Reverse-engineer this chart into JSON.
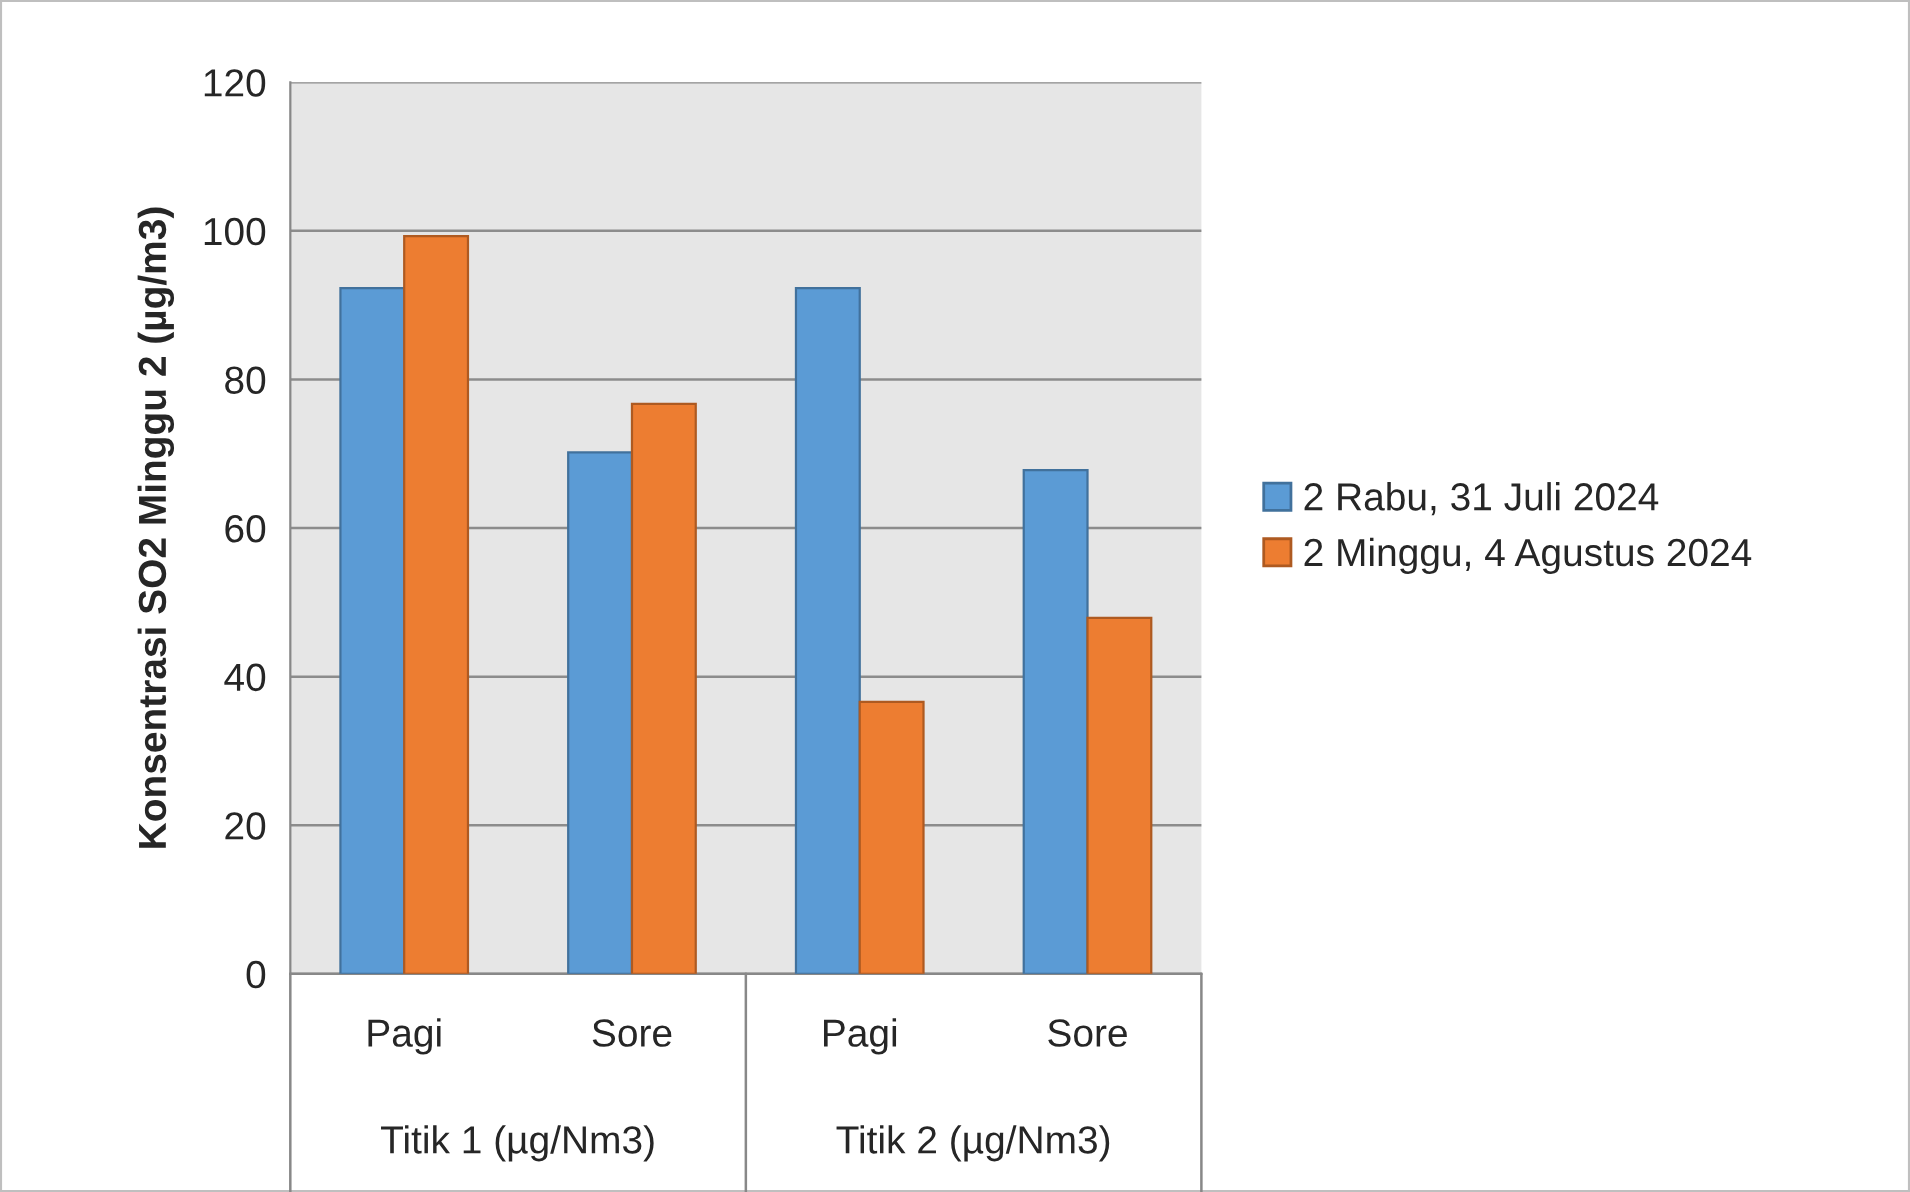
{
  "chart_data": {
    "type": "bar",
    "ylabel": "Konsentrasi SO2 Minggu 2 (µg/m3)",
    "categories": [
      "Pagi",
      "Sore",
      "Pagi",
      "Sore"
    ],
    "series": [
      {
        "name": "2 Rabu, 31 Juli 2024",
        "color": "#5b9bd5",
        "values": [
          92.3,
          70.2,
          92.3,
          67.8
        ]
      },
      {
        "name": "2 Minggu, 4 Agustus 2024",
        "color": "#ed7d31",
        "values": [
          99.3,
          76.7,
          36.6,
          47.9
        ]
      }
    ],
    "annotations": [
      "Titik 1 (µg/Nm3)",
      "Titik 2 (µg/Nm3)"
    ],
    "ylim": [
      0,
      120
    ],
    "yticks": [
      0,
      20,
      40,
      60,
      80,
      100,
      120
    ],
    "grid": "y",
    "legend": "right"
  }
}
